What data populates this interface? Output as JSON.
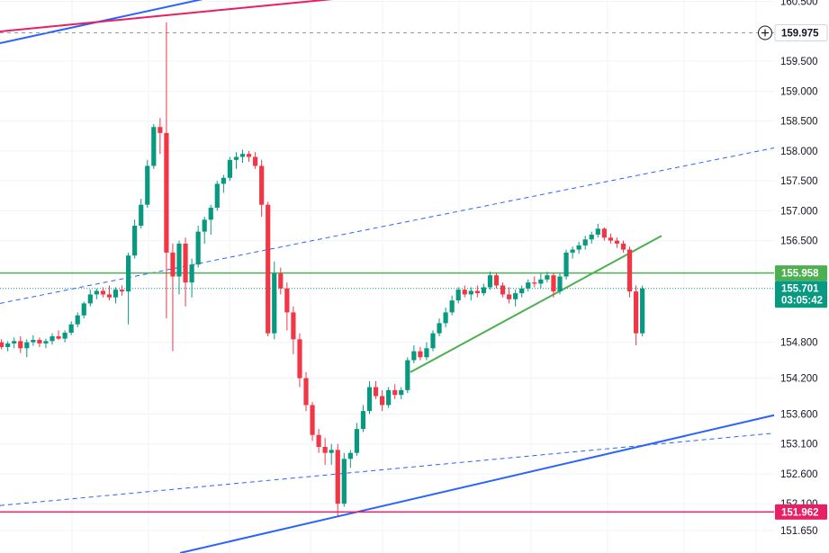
{
  "chart_data": {
    "type": "candlestick",
    "symbol": "",
    "y_ticks": [
      "151.650",
      "152.100",
      "152.600",
      "153.100",
      "153.600",
      "154.200",
      "154.800",
      "156.500",
      "157.000",
      "157.500",
      "158.000",
      "158.500",
      "159.000",
      "159.500",
      "160.500"
    ],
    "ylim": [
      151.5,
      160.6
    ],
    "grid": true,
    "price_labels": {
      "marked_level": {
        "value": "159.975",
        "color": "#131722"
      },
      "green_level": {
        "value": "155.958",
        "color": "#4caf50"
      },
      "last_price": {
        "value": "155.701",
        "countdown": "03:05:42",
        "color": "#089981"
      },
      "low_level": {
        "value": "151.962",
        "color": "#e91e63"
      }
    },
    "colors": {
      "up": "#089981",
      "down": "#f23645",
      "trendline_blue": "#2962ff",
      "trendline_pink": "#e91e63",
      "trendline_green": "#4caf50"
    },
    "candles": [
      [
        154.8,
        154.85,
        154.68,
        154.72
      ],
      [
        154.72,
        154.82,
        154.65,
        154.78
      ],
      [
        154.78,
        154.88,
        154.7,
        154.82
      ],
      [
        154.82,
        154.9,
        154.62,
        154.7
      ],
      [
        154.7,
        154.85,
        154.55,
        154.8
      ],
      [
        154.8,
        154.92,
        154.74,
        154.84
      ],
      [
        154.84,
        154.88,
        154.72,
        154.78
      ],
      [
        154.78,
        154.86,
        154.7,
        154.82
      ],
      [
        154.82,
        154.95,
        154.76,
        154.9
      ],
      [
        154.9,
        155.0,
        154.84,
        154.86
      ],
      [
        154.86,
        155.0,
        154.8,
        154.96
      ],
      [
        154.96,
        155.15,
        154.92,
        155.1
      ],
      [
        155.1,
        155.3,
        155.05,
        155.25
      ],
      [
        155.25,
        155.48,
        155.2,
        155.45
      ],
      [
        155.45,
        155.68,
        155.4,
        155.6
      ],
      [
        155.6,
        155.7,
        155.52,
        155.66
      ],
      [
        155.66,
        155.72,
        155.55,
        155.6
      ],
      [
        155.6,
        155.75,
        155.5,
        155.55
      ],
      [
        155.55,
        155.72,
        155.45,
        155.68
      ],
      [
        155.68,
        155.75,
        155.58,
        155.65
      ],
      [
        155.65,
        156.3,
        155.1,
        156.25
      ],
      [
        156.25,
        156.85,
        156.2,
        156.75
      ],
      [
        156.75,
        157.2,
        156.7,
        157.1
      ],
      [
        157.1,
        157.85,
        157.05,
        157.75
      ],
      [
        157.75,
        158.45,
        157.7,
        158.4
      ],
      [
        158.4,
        158.55,
        157.95,
        158.3
      ],
      [
        158.3,
        160.15,
        155.2,
        156.3
      ],
      [
        156.3,
        156.45,
        154.65,
        155.9
      ],
      [
        155.9,
        156.5,
        155.6,
        156.45
      ],
      [
        156.45,
        156.55,
        155.4,
        155.8
      ],
      [
        155.8,
        156.2,
        155.55,
        156.1
      ],
      [
        156.1,
        156.75,
        156.05,
        156.65
      ],
      [
        156.65,
        156.9,
        156.45,
        156.85
      ],
      [
        156.85,
        157.1,
        156.6,
        157.05
      ],
      [
        157.05,
        157.5,
        157.0,
        157.45
      ],
      [
        157.45,
        157.6,
        157.3,
        157.55
      ],
      [
        157.55,
        157.9,
        157.5,
        157.85
      ],
      [
        157.85,
        157.98,
        157.7,
        157.9
      ],
      [
        157.9,
        158.02,
        157.8,
        157.95
      ],
      [
        157.95,
        158.0,
        157.82,
        157.9
      ],
      [
        157.9,
        157.98,
        157.7,
        157.75
      ],
      [
        157.75,
        157.85,
        156.9,
        157.1
      ],
      [
        157.1,
        157.15,
        154.9,
        154.95
      ],
      [
        154.95,
        156.15,
        154.85,
        155.95
      ],
      [
        155.95,
        156.05,
        155.6,
        155.7
      ],
      [
        155.7,
        155.8,
        155.0,
        155.3
      ],
      [
        155.3,
        155.4,
        154.6,
        154.85
      ],
      [
        154.85,
        154.95,
        154.05,
        154.2
      ],
      [
        154.2,
        154.3,
        153.65,
        153.75
      ],
      [
        153.75,
        153.8,
        153.15,
        153.25
      ],
      [
        153.25,
        153.35,
        152.95,
        153.05
      ],
      [
        153.05,
        153.2,
        152.75,
        152.95
      ],
      [
        152.95,
        153.1,
        152.75,
        153.0
      ],
      [
        153.0,
        153.1,
        151.9,
        152.1
      ],
      [
        152.1,
        152.95,
        152.05,
        152.85
      ],
      [
        152.85,
        153.0,
        152.7,
        152.95
      ],
      [
        152.95,
        153.45,
        152.9,
        153.35
      ],
      [
        153.35,
        153.75,
        153.3,
        153.65
      ],
      [
        153.65,
        154.15,
        153.6,
        154.05
      ],
      [
        154.05,
        154.15,
        153.85,
        153.9
      ],
      [
        153.9,
        154.0,
        153.65,
        153.75
      ],
      [
        153.75,
        154.05,
        153.7,
        154.0
      ],
      [
        154.0,
        154.1,
        153.85,
        153.92
      ],
      [
        153.92,
        154.05,
        153.85,
        154.0
      ],
      [
        154.0,
        154.55,
        153.95,
        154.5
      ],
      [
        154.5,
        154.75,
        154.45,
        154.65
      ],
      [
        154.65,
        154.72,
        154.5,
        154.55
      ],
      [
        154.55,
        154.8,
        154.5,
        154.7
      ],
      [
        154.7,
        155.0,
        154.65,
        154.95
      ],
      [
        154.95,
        155.2,
        154.9,
        155.12
      ],
      [
        155.12,
        155.38,
        155.05,
        155.3
      ],
      [
        155.3,
        155.58,
        155.25,
        155.5
      ],
      [
        155.5,
        155.72,
        155.45,
        155.68
      ],
      [
        155.68,
        155.75,
        155.55,
        155.6
      ],
      [
        155.6,
        155.72,
        155.5,
        155.66
      ],
      [
        155.66,
        155.75,
        155.55,
        155.62
      ],
      [
        155.62,
        155.78,
        155.58,
        155.72
      ],
      [
        155.72,
        155.98,
        155.68,
        155.92
      ],
      [
        155.92,
        155.96,
        155.7,
        155.75
      ],
      [
        155.75,
        155.8,
        155.55,
        155.6
      ],
      [
        155.6,
        155.72,
        155.45,
        155.52
      ],
      [
        155.52,
        155.68,
        155.4,
        155.62
      ],
      [
        155.62,
        155.75,
        155.55,
        155.7
      ],
      [
        155.7,
        155.85,
        155.65,
        155.8
      ],
      [
        155.8,
        155.9,
        155.72,
        155.78
      ],
      [
        155.78,
        155.95,
        155.7,
        155.85
      ],
      [
        155.85,
        155.98,
        155.8,
        155.92
      ],
      [
        155.92,
        155.96,
        155.55,
        155.65
      ],
      [
        155.65,
        155.95,
        155.6,
        155.9
      ],
      [
        155.9,
        156.35,
        155.85,
        156.3
      ],
      [
        156.3,
        156.4,
        156.2,
        156.35
      ],
      [
        156.35,
        156.48,
        156.28,
        156.42
      ],
      [
        156.42,
        156.58,
        156.35,
        156.52
      ],
      [
        156.52,
        156.65,
        156.45,
        156.6
      ],
      [
        156.6,
        156.78,
        156.55,
        156.7
      ],
      [
        156.7,
        156.72,
        156.5,
        156.55
      ],
      [
        156.55,
        156.62,
        156.45,
        156.5
      ],
      [
        156.5,
        156.55,
        156.38,
        156.45
      ],
      [
        156.45,
        156.5,
        156.3,
        156.35
      ],
      [
        156.35,
        156.4,
        155.55,
        155.65
      ],
      [
        155.65,
        155.75,
        154.75,
        154.95
      ],
      [
        154.95,
        155.75,
        154.9,
        155.7
      ]
    ]
  }
}
